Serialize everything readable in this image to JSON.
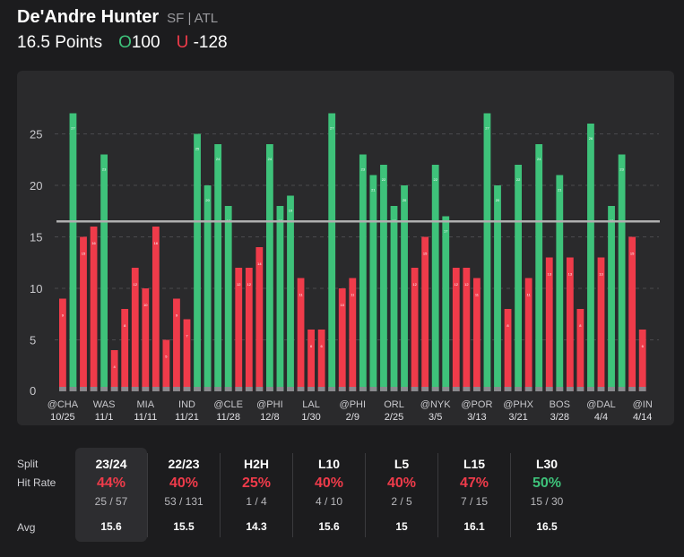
{
  "header": {
    "player_name": "De'Andre Hunter",
    "position_team": "SF | ATL",
    "line_label": "16.5 Points",
    "over_letter": "O",
    "over_odds": "100",
    "under_letter": "U",
    "under_odds": "-128"
  },
  "colors": {
    "over": "#3ec27a",
    "under": "#ef3b4a",
    "line": "#b0b0b0",
    "zero": "#8a8a8e"
  },
  "chart_data": {
    "type": "bar",
    "line_value": 16.5,
    "ylim": [
      0,
      27
    ],
    "yticks": [
      0,
      5,
      10,
      15,
      20,
      25
    ],
    "values": [
      9,
      27,
      15,
      16,
      23,
      4,
      8,
      12,
      10,
      16,
      5,
      9,
      7,
      25,
      20,
      24,
      18,
      12,
      12,
      14,
      24,
      18,
      19,
      11,
      6,
      6,
      27,
      10,
      11,
      23,
      21,
      22,
      18,
      20,
      12,
      15,
      22,
      17,
      12,
      12,
      11,
      27,
      20,
      8,
      22,
      11,
      24,
      13,
      21,
      13,
      8,
      26,
      13,
      18,
      23,
      15,
      6
    ],
    "x_tick_labels": [
      {
        "index": 1,
        "top": "@CHA",
        "bottom": "10/25"
      },
      {
        "index": 5,
        "top": "WAS",
        "bottom": "11/1"
      },
      {
        "index": 9,
        "top": "MIA",
        "bottom": "11/11"
      },
      {
        "index": 13,
        "top": "IND",
        "bottom": "11/21"
      },
      {
        "index": 17,
        "top": "@CLE",
        "bottom": "11/28"
      },
      {
        "index": 21,
        "top": "@PHI",
        "bottom": "12/8"
      },
      {
        "index": 25,
        "top": "LAL",
        "bottom": "1/30"
      },
      {
        "index": 29,
        "top": "@PHI",
        "bottom": "2/9"
      },
      {
        "index": 33,
        "top": "ORL",
        "bottom": "2/25"
      },
      {
        "index": 37,
        "top": "@NYK",
        "bottom": "3/5"
      },
      {
        "index": 41,
        "top": "@POR",
        "bottom": "3/13"
      },
      {
        "index": 45,
        "top": "@PHX",
        "bottom": "3/21"
      },
      {
        "index": 49,
        "top": "BOS",
        "bottom": "3/28"
      },
      {
        "index": 53,
        "top": "@DAL",
        "bottom": "4/4"
      },
      {
        "index": 57,
        "top": "@IN",
        "bottom": "4/14"
      }
    ]
  },
  "stats": {
    "row_labels": {
      "split": "Split",
      "hit_rate": "Hit Rate",
      "avg": "Avg"
    },
    "columns": [
      {
        "header": "23/24",
        "pct": "44%",
        "frac": "25 / 57",
        "avg": "15.6",
        "color": "#ef3b4a"
      },
      {
        "header": "22/23",
        "pct": "40%",
        "frac": "53 / 131",
        "avg": "15.5",
        "color": "#ef3b4a"
      },
      {
        "header": "H2H",
        "pct": "25%",
        "frac": "1 / 4",
        "avg": "14.3",
        "color": "#ef3b4a"
      },
      {
        "header": "L10",
        "pct": "40%",
        "frac": "4 / 10",
        "avg": "15.6",
        "color": "#ef3b4a"
      },
      {
        "header": "L5",
        "pct": "40%",
        "frac": "2 / 5",
        "avg": "15",
        "color": "#ef3b4a"
      },
      {
        "header": "L15",
        "pct": "47%",
        "frac": "7 / 15",
        "avg": "16.1",
        "color": "#ef3b4a"
      },
      {
        "header": "L30",
        "pct": "50%",
        "frac": "15 / 30",
        "avg": "16.5",
        "color": "#3ec27a"
      }
    ]
  }
}
